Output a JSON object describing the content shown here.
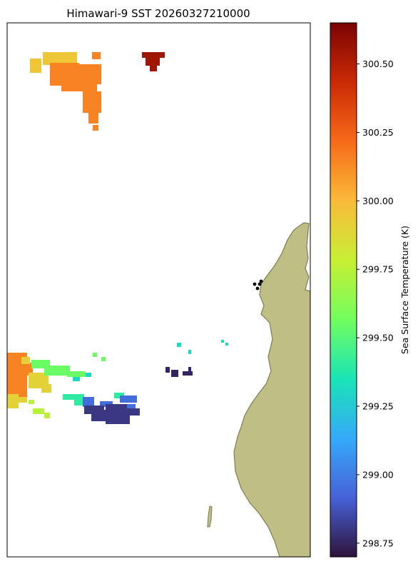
{
  "chart_data": {
    "type": "heatmap",
    "title": "Himawari-9 SST 20260327210000",
    "colorbar": {
      "label": "Sea Surface Temperature (K)",
      "range": [
        298.7,
        300.65
      ],
      "ticks": [
        298.75,
        299.0,
        299.25,
        299.5,
        299.75,
        300.0,
        300.25,
        300.5
      ],
      "tick_labels": [
        "298.75",
        "299.00",
        "299.25",
        "299.50",
        "299.75",
        "300.00",
        "300.25",
        "300.50"
      ],
      "colormap": [
        "#30123b",
        "#4662d7",
        "#36aaf9",
        "#1ae4b6",
        "#72fe5e",
        "#c8ef34",
        "#faba39",
        "#f66b19",
        "#ca2a04",
        "#7a0403"
      ]
    },
    "sst_regions": [
      {
        "name": "north-west cluster",
        "sst_k": 300.15
      },
      {
        "name": "north-west cluster edge",
        "sst_k": 299.95
      },
      {
        "name": "northern hot patch",
        "sst_k": 300.55
      },
      {
        "name": "south-west orange",
        "sst_k": 300.15
      },
      {
        "name": "south-west yellow",
        "sst_k": 299.9
      },
      {
        "name": "south-west green",
        "sst_k": 299.55
      },
      {
        "name": "south-west cyan",
        "sst_k": 299.4
      },
      {
        "name": "south-west lime",
        "sst_k": 299.75
      },
      {
        "name": "southern cool cluster",
        "sst_k": 298.8
      },
      {
        "name": "southern blue fringe",
        "sst_k": 298.95
      },
      {
        "name": "central small patch",
        "sst_k": 298.75
      },
      {
        "name": "central cyan specks",
        "sst_k": 299.3
      }
    ],
    "land_color": "#bfbf85",
    "grid": false
  }
}
